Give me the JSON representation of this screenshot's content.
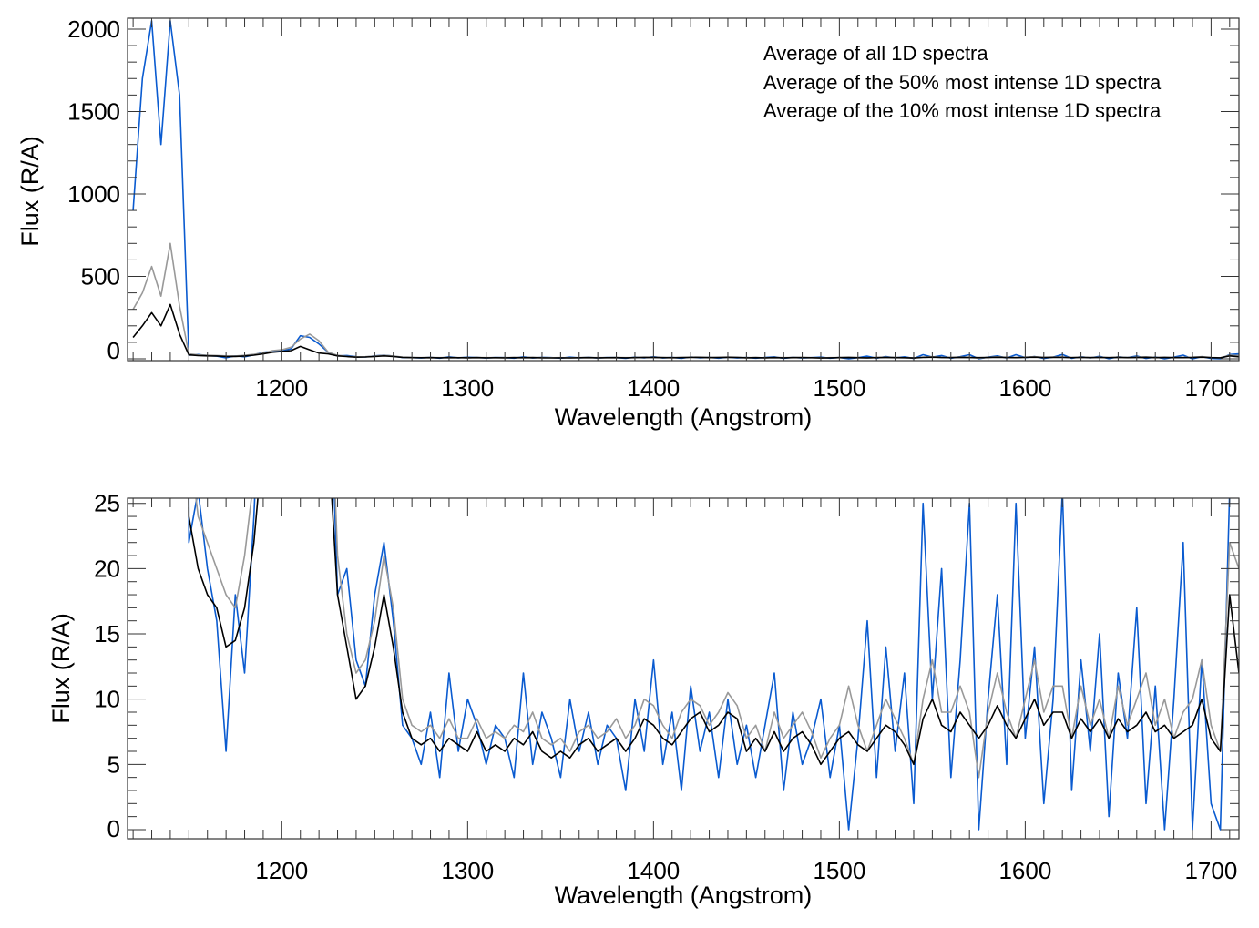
{
  "colors": {
    "all": "#000000",
    "p50": "#999999",
    "p10": "#0a5bd0"
  },
  "legend": [
    {
      "label": "Average of all 1D spectra",
      "series": "all"
    },
    {
      "label": "Average of the 50% most intense 1D spectra",
      "series": "p50"
    },
    {
      "label": "Average of the 10% most intense 1D spectra",
      "series": "p10"
    }
  ],
  "chart_data": [
    {
      "type": "line",
      "title": "",
      "xlabel": "Wavelength (Angstrom)",
      "ylabel": "Flux (R/A)",
      "xlim": [
        1117,
        1715
      ],
      "ylim": [
        -11,
        2066
      ],
      "xticks": [
        1200,
        1300,
        1400,
        1500,
        1600,
        1700
      ],
      "yticks": [
        0,
        500,
        1000,
        1500,
        2000
      ],
      "legend_position": "top-right",
      "series_ref": "spectra"
    },
    {
      "type": "line",
      "title": "",
      "xlabel": "Wavelength (Angstrom)",
      "ylabel": "Flux (R/A)",
      "xlim": [
        1117,
        1715
      ],
      "ylim": [
        -0.7,
        25.4
      ],
      "xticks": [
        1200,
        1300,
        1400,
        1500,
        1600,
        1700
      ],
      "yticks": [
        0,
        5,
        10,
        15,
        20,
        25
      ],
      "series_ref": "spectra"
    }
  ],
  "spectra": {
    "x_start": 1120,
    "x_step": 5,
    "series": [
      {
        "key": "all",
        "name": "Average of all 1D spectra",
        "values": [
          130,
          200,
          280,
          200,
          330,
          150,
          24,
          20,
          18,
          17,
          14,
          14.5,
          17,
          22,
          30,
          40,
          45,
          50,
          75,
          55,
          35,
          30,
          18,
          14,
          10,
          11,
          14,
          18,
          14,
          9,
          7,
          6.5,
          7,
          6,
          7,
          6.5,
          6,
          7.5,
          6,
          6.5,
          6,
          7,
          6.5,
          7.5,
          6,
          5.5,
          6,
          5.5,
          6.5,
          7,
          6,
          6.5,
          7,
          6,
          7,
          8.5,
          8,
          7,
          6.5,
          7.5,
          8.5,
          9,
          7.5,
          8,
          9,
          8.5,
          6,
          7,
          6,
          7.5,
          6,
          7,
          7.5,
          6.5,
          5,
          6,
          7,
          7.5,
          6.5,
          6,
          7,
          8,
          7.5,
          6.5,
          5,
          8.5,
          10,
          8,
          7.5,
          9,
          8,
          7,
          8,
          9.5,
          8,
          7,
          8.5,
          10,
          8,
          9,
          9,
          7,
          8.5,
          7.5,
          8.5,
          7,
          8.5,
          7.5,
          8,
          9,
          7.5,
          8,
          7,
          7.5,
          8,
          10,
          7,
          6,
          18,
          12
        ]
      },
      {
        "key": "p50",
        "name": "Average of the 50% most intense 1D spectra",
        "values": [
          300,
          400,
          560,
          380,
          700,
          320,
          30,
          24,
          22,
          20,
          18,
          17,
          21,
          27,
          35,
          50,
          55,
          70,
          120,
          150,
          110,
          40,
          21,
          15,
          12,
          13,
          16,
          21,
          17,
          10,
          8,
          7.5,
          8,
          7,
          8.5,
          7,
          7,
          8.5,
          7,
          7.5,
          7,
          8,
          7.5,
          9,
          7,
          6.5,
          7,
          6,
          7.5,
          8,
          7,
          7.5,
          8.5,
          7,
          8,
          10,
          9.5,
          8,
          7,
          9,
          10,
          9.5,
          8,
          9,
          10.5,
          9.5,
          7,
          8,
          6,
          9,
          7,
          8,
          9,
          7.5,
          5.5,
          7,
          8,
          11,
          8,
          6,
          8,
          10,
          8.5,
          7,
          5,
          10,
          13,
          9,
          9,
          11,
          9,
          4,
          9,
          12,
          9,
          7,
          10,
          13,
          9,
          11,
          11,
          7,
          11,
          8,
          10,
          7,
          11,
          8,
          10,
          12,
          8,
          10,
          7,
          9,
          10,
          13,
          8,
          6,
          22,
          20
        ]
      },
      {
        "key": "p10",
        "name": "Average of the 10% most intense 1D spectra",
        "values": [
          900,
          1700,
          2050,
          1300,
          2050,
          1600,
          22,
          26,
          20,
          16,
          6,
          18,
          12,
          24,
          40,
          45,
          50,
          60,
          140,
          130,
          90,
          40,
          18,
          20,
          13,
          11,
          18,
          22,
          16,
          8,
          7,
          5,
          9,
          4,
          12,
          6,
          10,
          8,
          5,
          8,
          7,
          4,
          12,
          5,
          9,
          7,
          4,
          10,
          6,
          9,
          5,
          8,
          7,
          3,
          10,
          6,
          13,
          5,
          9,
          3,
          11,
          6,
          9,
          4,
          10,
          5,
          8,
          4,
          8,
          12,
          3,
          9,
          5,
          7,
          10,
          4,
          8,
          0,
          7,
          16,
          4,
          14,
          6,
          12,
          2,
          25,
          10,
          20,
          4,
          13,
          25,
          0,
          10,
          18,
          5,
          25,
          7,
          14,
          2,
          10,
          26,
          3,
          13,
          6,
          15,
          1,
          12,
          7,
          17,
          2,
          11,
          0,
          10,
          22,
          0,
          13,
          2,
          0,
          26,
          30
        ]
      }
    ]
  }
}
